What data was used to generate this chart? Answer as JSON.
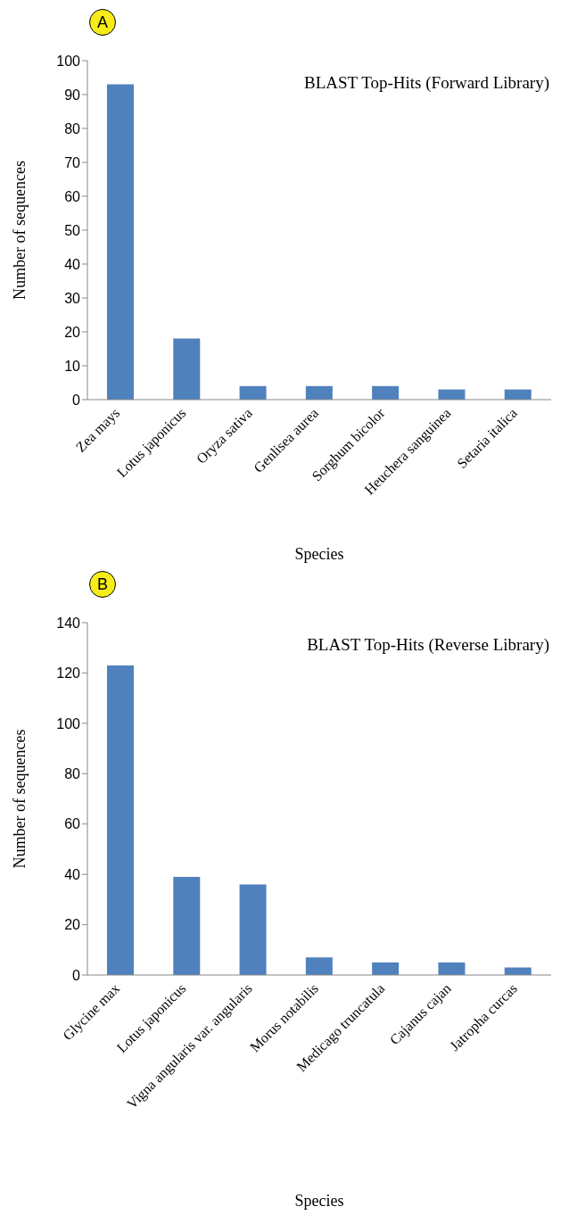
{
  "chart_data": [
    {
      "type": "bar",
      "title": "BLAST Top-Hits (Forward Library)",
      "xlabel": "Species",
      "ylabel": "Number of sequences",
      "annotations": [
        "A"
      ],
      "categories": [
        "Zea mays",
        "Lotus japonicus",
        "Oryza sativa",
        "Genlisea aurea",
        "Sorghum bicolor",
        "Heuchera sanguinea",
        "Setaria italica"
      ],
      "values": [
        93,
        18,
        4,
        4,
        4,
        3,
        3
      ],
      "color": "#4f81bd",
      "ylim": [
        0,
        100
      ],
      "yticks": [
        0,
        10,
        20,
        30,
        40,
        50,
        60,
        70,
        80,
        90,
        100
      ],
      "grid": false,
      "legend": false
    },
    {
      "type": "bar",
      "title": "BLAST Top-Hits (Reverse Library)",
      "xlabel": "Species",
      "ylabel": "Number of sequences",
      "annotations": [
        "B"
      ],
      "categories": [
        "Glycine max",
        "Lotus japonicus",
        "Vigna angularis var. angularis",
        "Morus notabilis",
        "Medicago truncatula",
        "Cajanus cajan",
        "Jatropha curcas"
      ],
      "values": [
        123,
        39,
        36,
        7,
        5,
        5,
        3
      ],
      "color": "#4f81bd",
      "ylim": [
        0,
        140
      ],
      "yticks": [
        0,
        20,
        40,
        60,
        80,
        100,
        120,
        140
      ],
      "grid": false,
      "legend": false
    }
  ]
}
